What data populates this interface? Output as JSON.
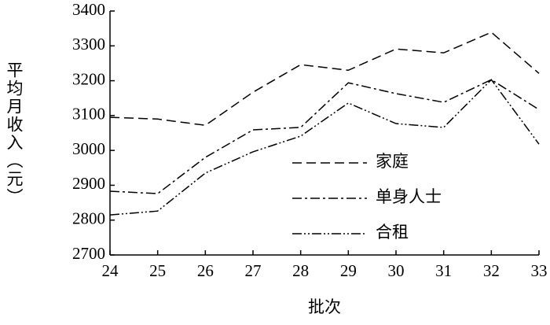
{
  "chart_data": {
    "type": "line",
    "x_label": "批次",
    "y_label": "平均月收入（元）",
    "x": [
      24,
      25,
      26,
      27,
      28,
      29,
      30,
      31,
      32,
      33
    ],
    "xlim": [
      24,
      33
    ],
    "xticks": [
      24,
      25,
      26,
      27,
      28,
      29,
      30,
      31,
      32,
      33
    ],
    "ylim": [
      2700,
      3400
    ],
    "yticks": [
      2700,
      2800,
      2900,
      3000,
      3100,
      3200,
      3300,
      3400
    ],
    "grid": false,
    "legend": "center",
    "series": [
      {
        "name": "家庭",
        "color": "#000000",
        "dash": "12 6",
        "values": [
          3095,
          3090,
          3072,
          3167,
          3246,
          3230,
          3291,
          3280,
          3339,
          3221
        ]
      },
      {
        "name": "单身人士",
        "color": "#000000",
        "dash": "12 4 3 4",
        "values": [
          2883,
          2876,
          2980,
          3059,
          3066,
          3194,
          3163,
          3138,
          3203,
          3117
        ]
      },
      {
        "name": "合租",
        "color": "#000000",
        "dash": "12 3 2 3 2 3",
        "values": [
          2815,
          2826,
          2935,
          2996,
          3041,
          3136,
          3077,
          3066,
          3203,
          3018
        ]
      }
    ]
  }
}
